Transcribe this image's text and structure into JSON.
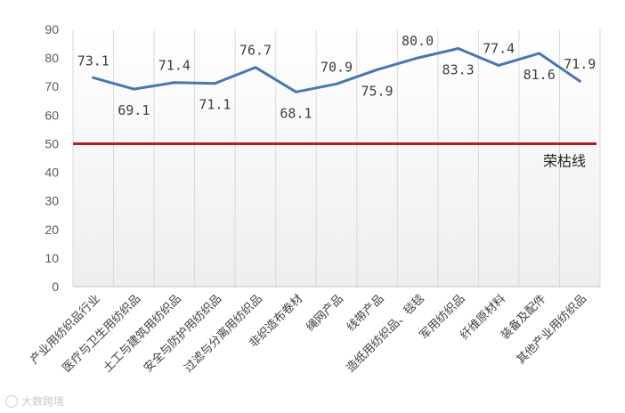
{
  "chart_data": {
    "type": "line",
    "categories": [
      "产业用纺织品行业",
      "医疗与卫生用纺织品",
      "土工与建筑用纺织品",
      "安全与防护用纺织品",
      "过滤与分离用纺织品",
      "非织造布卷材",
      "绳网产品",
      "线带产品",
      "造纸用纺织品、毯毯",
      "军用纺织品",
      "纤维原材料",
      "装备及配件",
      "其他产业用纺织品"
    ],
    "series": [
      {
        "values": [
          73.1,
          69.1,
          71.4,
          71.1,
          76.7,
          68.1,
          70.9,
          75.9,
          80.0,
          83.3,
          77.4,
          81.6,
          71.9
        ],
        "labels": [
          "73.1",
          "69.1",
          "71.4",
          "71.1",
          "76.7",
          "68.1",
          "70.9",
          "75.9",
          "80.0",
          "83.3",
          "77.4",
          "81.6",
          "71.9"
        ],
        "color": "#4a76b0"
      }
    ],
    "reference_line": {
      "value": 50,
      "label": "荣枯线",
      "color": "#b51e1e"
    },
    "ylim": [
      0,
      90
    ],
    "yticks": [
      "0",
      "10",
      "20",
      "30",
      "40",
      "50",
      "60",
      "70",
      "80",
      "90"
    ],
    "grid": "vertical",
    "legend": "none",
    "title": "",
    "xlabel": "",
    "ylabel": ""
  },
  "watermark": "大数跨境"
}
